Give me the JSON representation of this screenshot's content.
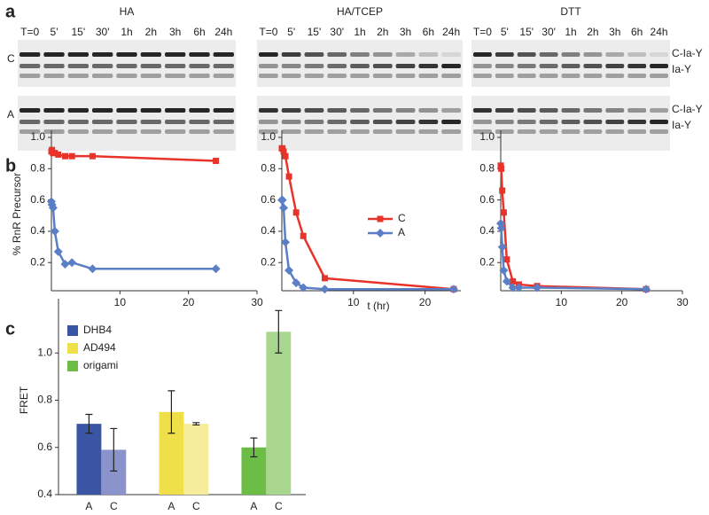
{
  "panel_labels": [
    "a",
    "b",
    "c"
  ],
  "gels": {
    "titles": [
      "HA",
      "HA/TCEP",
      "DTT"
    ],
    "timepoints": [
      "T=0",
      "5'",
      "15'",
      "30'",
      "1h",
      "2h",
      "3h",
      "6h",
      "24h"
    ],
    "row_labels": [
      "C",
      "A"
    ],
    "band_labels": [
      "C-Ia-Y",
      "Ia-Y"
    ]
  },
  "chart_data": [
    {
      "type": "line",
      "ylabel": "% RnR Precursor",
      "x": [
        0,
        0.083,
        0.25,
        0.5,
        1,
        2,
        3,
        6,
        24
      ],
      "series": [
        {
          "color": "#e8332a",
          "values": [
            0.91,
            0.92,
            0.9,
            0.9,
            0.89,
            0.88,
            0.88,
            0.88,
            0.85
          ]
        },
        {
          "color": "#5b7fc6",
          "values": [
            0.59,
            0.57,
            0.55,
            0.4,
            0.27,
            0.19,
            0.2,
            0.16,
            0.16
          ]
        }
      ],
      "xlim": [
        0,
        30
      ],
      "xticks": [
        10,
        20,
        30
      ],
      "ylim": [
        0.02,
        1
      ],
      "yticks": [
        0.2,
        0.4,
        0.6,
        0.8,
        {
          "value": 1,
          "label": "1.0"
        }
      ]
    },
    {
      "type": "line",
      "xlabel": "t (hr)",
      "legend": "center-right",
      "x": [
        0,
        0.083,
        0.25,
        0.5,
        1,
        2,
        3,
        6,
        24
      ],
      "series": [
        {
          "name": "C",
          "color": "#e8332a",
          "values": [
            0.93,
            0.93,
            0.91,
            0.88,
            0.75,
            0.52,
            0.37,
            0.1,
            0.03
          ]
        },
        {
          "name": "A",
          "color": "#5b7fc6",
          "values": [
            0.6,
            0.6,
            0.55,
            0.33,
            0.15,
            0.07,
            0.04,
            0.03,
            0.03
          ]
        }
      ],
      "xlim": [
        0,
        25
      ],
      "xticks": [
        10,
        20
      ],
      "ylim": [
        0.02,
        1
      ],
      "yticks": [
        0.2,
        0.4,
        0.6,
        0.8,
        {
          "value": 1,
          "label": "1.0"
        }
      ]
    },
    {
      "type": "line",
      "x": [
        0,
        0.083,
        0.25,
        0.5,
        1,
        2,
        3,
        6,
        24
      ],
      "series": [
        {
          "color": "#e8332a",
          "values": [
            0.82,
            0.8,
            0.66,
            0.52,
            0.22,
            0.08,
            0.06,
            0.05,
            0.03
          ]
        },
        {
          "color": "#5b7fc6",
          "values": [
            0.45,
            0.42,
            0.3,
            0.15,
            0.08,
            0.04,
            0.04,
            0.04,
            0.03
          ]
        }
      ],
      "xlim": [
        0,
        30
      ],
      "xticks": [
        10,
        20,
        30
      ],
      "ylim": [
        0.02,
        1
      ],
      "yticks": [
        0.2,
        0.4,
        0.6,
        0.8,
        {
          "value": 1,
          "label": "1.0"
        }
      ]
    },
    {
      "type": "bar",
      "ylabel": "FRET",
      "legend": "upper-left",
      "categories": [
        "A",
        "C"
      ],
      "series": [
        {
          "name": "DHB4",
          "color": "#3a55a4",
          "colors": [
            "#3a55a4",
            "#8a93cb"
          ],
          "values": [
            0.7,
            0.59
          ],
          "errors": [
            0.04,
            0.09
          ]
        },
        {
          "name": "AD494",
          "color": "#efe04a",
          "colors": [
            "#efe04a",
            "#f5ec9c"
          ],
          "values": [
            0.75,
            0.7
          ],
          "errors": [
            0.09,
            0.005
          ]
        },
        {
          "name": "origami",
          "color": "#6cbd45",
          "colors": [
            "#6cbd45",
            "#a9d68e"
          ],
          "values": [
            0.6,
            1.09
          ],
          "errors": [
            0.04,
            0.09
          ]
        }
      ],
      "ylim": [
        0.4,
        1.2
      ],
      "yticks": [
        0.4,
        0.6,
        0.8,
        {
          "value": 1,
          "label": "1.0"
        }
      ]
    }
  ]
}
